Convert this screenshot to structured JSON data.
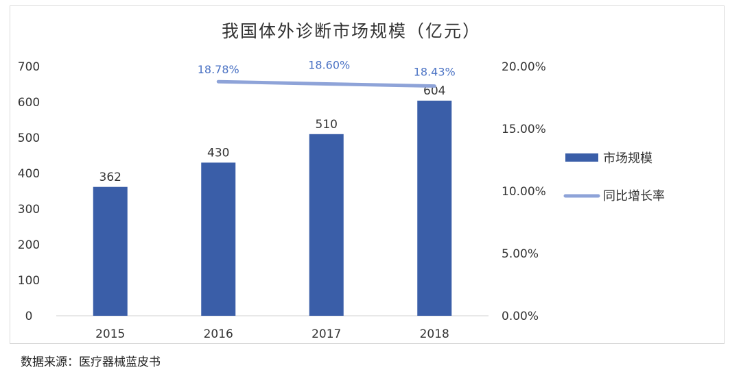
{
  "chart_data": {
    "type": "bar",
    "title": "我国体外诊断市场规模（亿元）",
    "categories": [
      "2015",
      "2016",
      "2017",
      "2018"
    ],
    "series": [
      {
        "name": "市场规模",
        "type": "bar",
        "axis": "left",
        "values": [
          362,
          430,
          510,
          604
        ],
        "labels": [
          "362",
          "430",
          "510",
          "604"
        ],
        "color": "#3a5ea8"
      },
      {
        "name": "同比增长率",
        "type": "line",
        "axis": "right",
        "points": [
          {
            "x": "2016",
            "y": 18.78
          },
          {
            "x": "2017",
            "y": 18.6
          },
          {
            "x": "2018",
            "y": 18.43
          }
        ],
        "labels": [
          "18.78%",
          "18.60%",
          "18.43%"
        ],
        "color": "#8ea3d8",
        "label_color": "#4a72c4"
      }
    ],
    "y_left": {
      "min": 0,
      "max": 700,
      "ticks": [
        "0",
        "100",
        "200",
        "300",
        "400",
        "500",
        "600",
        "700"
      ]
    },
    "y_right": {
      "min": 0,
      "max": 20,
      "ticks": [
        "0.00%",
        "5.00%",
        "10.00%",
        "15.00%",
        "20.00%"
      ]
    },
    "grid": false,
    "legend_position": "right"
  },
  "source": "数据来源：医疗器械蓝皮书"
}
